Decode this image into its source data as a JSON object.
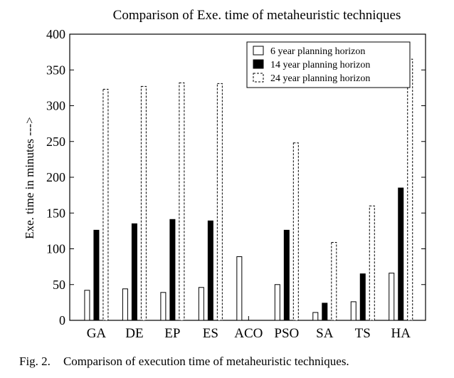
{
  "chart_data": {
    "type": "bar",
    "title": "Comparison of Exe. time of metaheuristic techniques",
    "xlabel": "",
    "ylabel": "Exe. time in minutes --->",
    "ylim": [
      0,
      400
    ],
    "yticks": [
      0,
      50,
      100,
      150,
      200,
      250,
      300,
      350,
      400
    ],
    "categories": [
      "GA",
      "DE",
      "EP",
      "ES",
      "ACO",
      "PSO",
      "SA",
      "TS",
      "HA"
    ],
    "series": [
      {
        "name": "6 year planning horizon",
        "style": "open",
        "values": [
          42,
          44,
          39,
          46,
          89,
          50,
          11,
          26,
          66
        ]
      },
      {
        "name": "14 year planning horizon",
        "style": "solid",
        "values": [
          126,
          135,
          141,
          139,
          0,
          126,
          24,
          65,
          185
        ]
      },
      {
        "name": "24 year planning horizon",
        "style": "dashed",
        "values": [
          323,
          327,
          332,
          331,
          0,
          248,
          109,
          160,
          365
        ]
      }
    ],
    "legend_position": "top-right",
    "grid": false
  },
  "caption": {
    "label": "Fig. 2.",
    "text": "Comparison of execution time of metaheuristic techniques."
  }
}
